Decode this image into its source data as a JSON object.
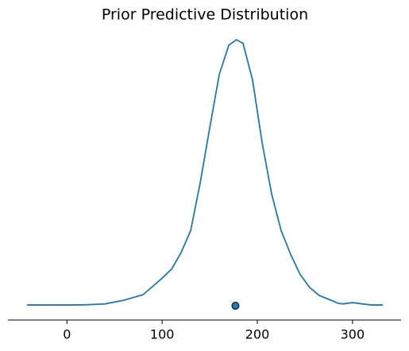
{
  "chart_data": {
    "type": "line",
    "title": "Prior Predictive Distribution",
    "x": [
      -42,
      -40,
      0,
      20,
      40,
      60,
      80,
      100,
      110,
      120,
      130,
      140,
      150,
      160,
      170,
      178,
      185,
      195,
      205,
      215,
      225,
      235,
      245,
      255,
      265,
      275,
      285,
      290,
      300,
      310,
      320,
      332
    ],
    "series": [
      {
        "color": "#1f77b4",
        "values": [
          4e-05,
          4e-05,
          4e-05,
          5e-05,
          0.0001,
          0.0003,
          0.0006,
          0.0015,
          0.002,
          0.0029,
          0.0041,
          0.0067,
          0.0097,
          0.0126,
          0.0142,
          0.0145,
          0.0143,
          0.0123,
          0.0089,
          0.0061,
          0.0041,
          0.0028,
          0.0017,
          0.001,
          0.00056,
          0.00035,
          0.00013,
          0.0001,
          0.00017,
          0.0001,
          4e-05,
          4e-05
        ]
      }
    ],
    "point_estimate": 177,
    "xlim": [
      -62,
      351
    ],
    "xticks": [
      0,
      100,
      200,
      300
    ],
    "ylim": [
      -0.00078,
      0.01515
    ]
  }
}
